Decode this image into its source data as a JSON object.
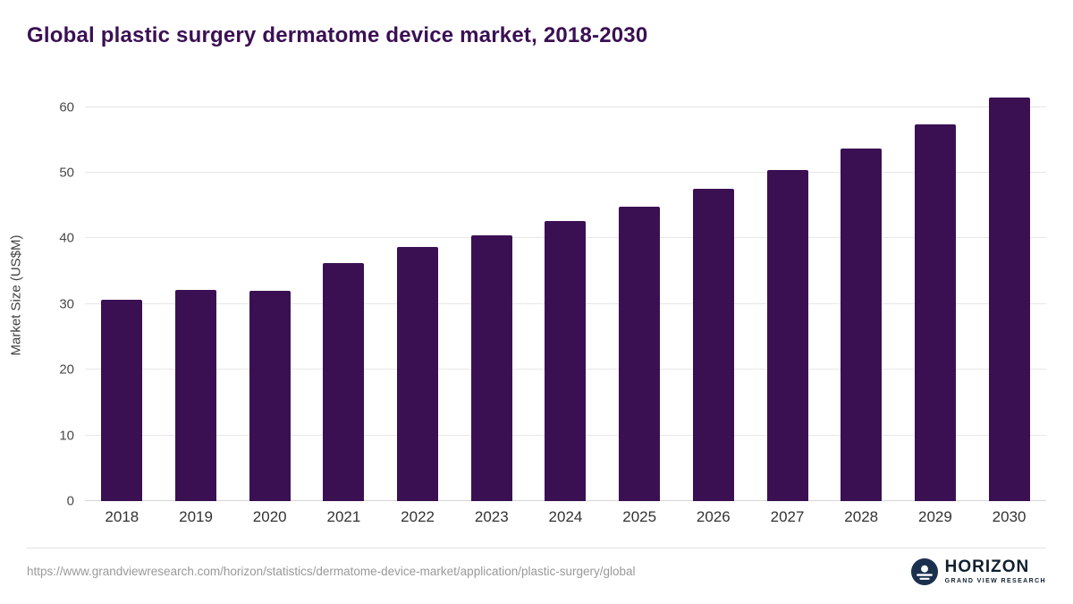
{
  "title": "Global plastic surgery dermatome device market, 2018-2030",
  "chart_data": {
    "type": "bar",
    "title": "Global plastic surgery dermatome device market, 2018-2030",
    "categories": [
      "2018",
      "2019",
      "2020",
      "2021",
      "2022",
      "2023",
      "2024",
      "2025",
      "2026",
      "2027",
      "2028",
      "2029",
      "2030"
    ],
    "values": [
      30.6,
      32.2,
      32.0,
      36.2,
      38.7,
      40.5,
      42.7,
      44.9,
      47.5,
      50.4,
      53.7,
      57.4,
      61.4
    ],
    "xlabel": "",
    "ylabel": "Market Size (US$M)",
    "ylim": [
      0,
      62
    ],
    "yticks": [
      0,
      10,
      20,
      30,
      40,
      50,
      60
    ],
    "grid": true,
    "legend": false,
    "bar_color": "#3b1053"
  },
  "footer": {
    "source_url": "https://www.grandviewresearch.com/horizon/statistics/dermatome-device-market/application/plastic-surgery/global",
    "logo_name": "HORIZON",
    "logo_sub": "GRAND VIEW RESEARCH"
  },
  "colors": {
    "bar": "#3b1053",
    "title": "#3b1053",
    "gridline": "#e7e7e7",
    "logo_circle": "#1b2f4e"
  }
}
